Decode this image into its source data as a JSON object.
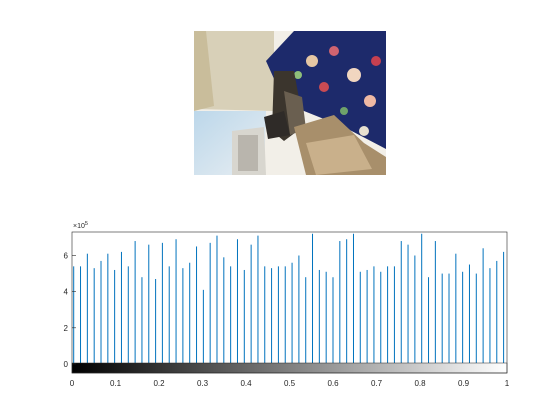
{
  "chart_data": {
    "type": "bar",
    "title": "",
    "xlabel": "",
    "ylabel": "",
    "xlim": [
      0,
      1
    ],
    "ylim": [
      -50000,
      730000
    ],
    "y_exponent_label": "×10",
    "y_exponent_power": "5",
    "x_ticks": [
      0,
      0.1,
      0.2,
      0.3,
      0.4,
      0.5,
      0.6,
      0.7,
      0.8,
      0.9,
      1
    ],
    "x_tick_labels": [
      "0",
      "0.1",
      "0.2",
      "0.3",
      "0.4",
      "0.5",
      "0.6",
      "0.7",
      "0.8",
      "0.9",
      "1"
    ],
    "y_ticks": [
      0,
      200000,
      400000,
      600000
    ],
    "y_tick_labels": [
      "0",
      "2",
      "4",
      "6"
    ],
    "grid": false,
    "bar_color": "#0072BD",
    "colorbar": "grayscale",
    "x": [
      0.0039,
      0.0196,
      0.0353,
      0.051,
      0.0667,
      0.0824,
      0.098,
      0.1137,
      0.1294,
      0.1451,
      0.1608,
      0.1765,
      0.1922,
      0.2078,
      0.2235,
      0.2392,
      0.2549,
      0.2706,
      0.2863,
      0.302,
      0.3176,
      0.3333,
      0.349,
      0.3647,
      0.3804,
      0.3961,
      0.4118,
      0.4275,
      0.4431,
      0.4588,
      0.4745,
      0.4902,
      0.5059,
      0.5216,
      0.5373,
      0.5529,
      0.5686,
      0.5843,
      0.6,
      0.6157,
      0.6314,
      0.6471,
      0.6627,
      0.6784,
      0.6941,
      0.7098,
      0.7255,
      0.7412,
      0.7569,
      0.7725,
      0.7882,
      0.8039,
      0.8196,
      0.8353,
      0.851,
      0.8667,
      0.8824,
      0.898,
      0.9137,
      0.9294,
      0.9451,
      0.9608,
      0.9765,
      0.9922
    ],
    "values": [
      540000,
      540000,
      610000,
      530000,
      570000,
      610000,
      520000,
      620000,
      540000,
      680000,
      480000,
      660000,
      470000,
      670000,
      540000,
      690000,
      530000,
      560000,
      650000,
      410000,
      670000,
      710000,
      590000,
      540000,
      690000,
      520000,
      660000,
      710000,
      540000,
      530000,
      540000,
      540000,
      560000,
      600000,
      480000,
      720000,
      520000,
      510000,
      480000,
      680000,
      690000,
      720000,
      510000,
      520000,
      540000,
      510000,
      540000,
      540000,
      680000,
      660000,
      600000,
      720000,
      480000,
      680000,
      500000,
      500000,
      610000,
      510000,
      550000,
      500000,
      640000,
      530000,
      570000,
      620000
    ]
  }
}
